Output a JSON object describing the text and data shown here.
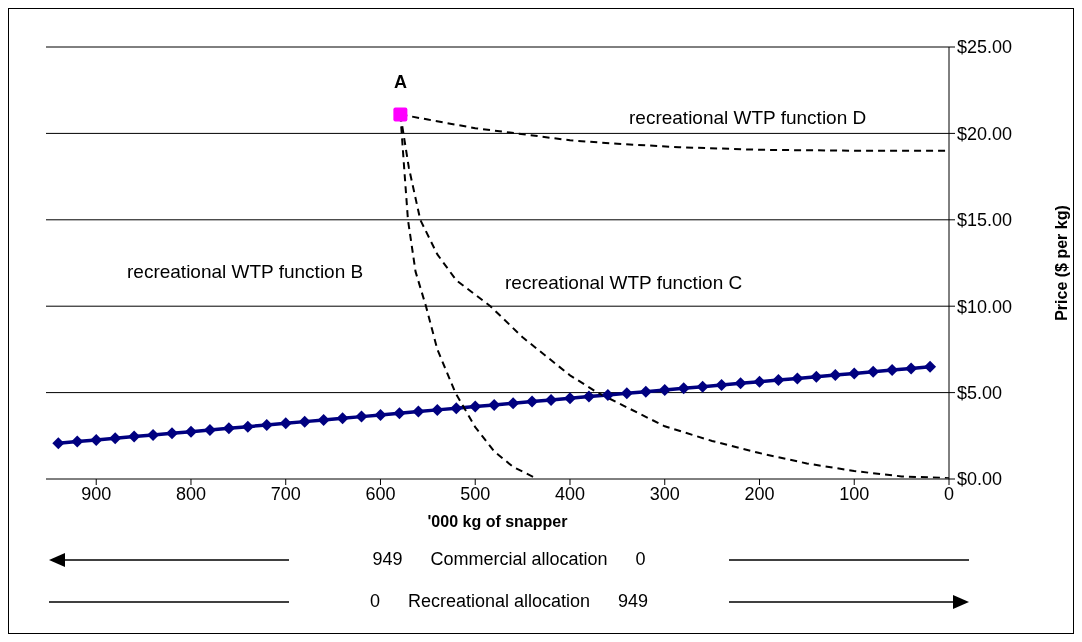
{
  "chart_data": {
    "type": "line",
    "xlabel": "'000 kg of snapper",
    "ylabel": "Price ($ per kg)",
    "xlim": [
      953,
      0
    ],
    "xticks": [
      900,
      800,
      700,
      600,
      500,
      400,
      300,
      200,
      100,
      0
    ],
    "ylim": [
      0,
      25
    ],
    "yticks": [
      {
        "value": 0,
        "label": "$0.00"
      },
      {
        "value": 5,
        "label": "$5.00"
      },
      {
        "value": 10,
        "label": "$10.00"
      },
      {
        "value": 15,
        "label": "$15.00"
      },
      {
        "value": 20,
        "label": "$20.00"
      },
      {
        "value": 25,
        "label": "$25.00"
      }
    ],
    "grid": "y",
    "series": [
      {
        "color": "#000080",
        "marker": "diamond",
        "line_style": "solid",
        "x": [
          940,
          920,
          900,
          880,
          860,
          840,
          820,
          800,
          780,
          760,
          740,
          720,
          700,
          680,
          660,
          640,
          620,
          600,
          580,
          560,
          540,
          520,
          500,
          480,
          460,
          440,
          420,
          400,
          380,
          360,
          340,
          320,
          300,
          280,
          260,
          240,
          220,
          200,
          180,
          160,
          140,
          120,
          100,
          80,
          60,
          40,
          20
        ],
        "values": [
          2.07,
          2.17,
          2.26,
          2.36,
          2.46,
          2.55,
          2.65,
          2.74,
          2.84,
          2.94,
          3.03,
          3.13,
          3.23,
          3.32,
          3.42,
          3.51,
          3.61,
          3.71,
          3.8,
          3.9,
          4.0,
          4.09,
          4.19,
          4.28,
          4.38,
          4.48,
          4.57,
          4.67,
          4.77,
          4.86,
          4.96,
          5.05,
          5.15,
          5.25,
          5.34,
          5.44,
          5.54,
          5.63,
          5.73,
          5.82,
          5.92,
          6.02,
          6.11,
          6.21,
          6.31,
          6.4,
          6.5
        ]
      },
      {
        "name": "recreational WTP function B",
        "color": "#000000",
        "marker": "none",
        "line_style": "dashed",
        "x": [
          579,
          575,
          571,
          563,
          552,
          540,
          521,
          500,
          480,
          460,
          438
        ],
        "values": [
          21.1,
          18,
          15,
          12,
          10,
          7.5,
          5,
          3,
          1.6,
          0.7,
          0.1
        ]
      },
      {
        "name": "recreational WTP function C",
        "color": "#000000",
        "marker": "none",
        "line_style": "dashed",
        "x": [
          579,
          570,
          558,
          540,
          520,
          484,
          450,
          400,
          371,
          300,
          250,
          200,
          150,
          100,
          50,
          0
        ],
        "values": [
          21.1,
          18,
          15,
          13,
          11.5,
          10,
          8.2,
          6,
          5,
          3.05,
          2.2,
          1.5,
          0.9,
          0.46,
          0.15,
          0.05
        ]
      },
      {
        "name": "recreational WTP function D",
        "color": "#000000",
        "marker": "none",
        "line_style": "dashed",
        "x": [
          579,
          550,
          500,
          456,
          400,
          350,
          285,
          200,
          100,
          0
        ],
        "values": [
          21.1,
          20.8,
          20.3,
          20.0,
          19.6,
          19.4,
          19.2,
          19.05,
          19.0,
          19.0
        ]
      },
      {
        "type": "scatter",
        "name": "A",
        "color": "#ff00ff",
        "marker": "square",
        "x": [
          579
        ],
        "values": [
          21.1
        ]
      }
    ],
    "annotations": [
      "949",
      "Commercial allocation",
      "0",
      "0",
      "Recreational allocation",
      "949"
    ]
  }
}
